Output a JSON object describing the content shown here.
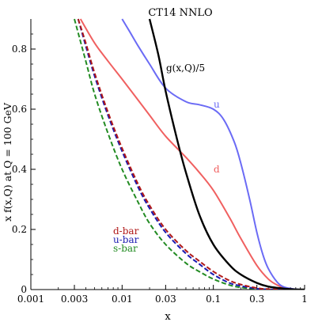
{
  "chart_data": {
    "type": "line",
    "title": "CT14 NNLO",
    "xlabel": "x",
    "ylabel": "x f(x,Q) at Q = 100 GeV",
    "xscale": "log",
    "xlim": [
      0.001,
      1
    ],
    "ylim": [
      0,
      0.9
    ],
    "x_ticks": [
      0.001,
      0.003,
      0.01,
      0.03,
      0.1,
      0.3,
      1
    ],
    "x_tick_labels": [
      "0.001",
      "0.003",
      "0.01",
      "0.03",
      "0.1",
      "0.3",
      "1"
    ],
    "y_ticks": [
      0,
      0.2,
      0.4,
      0.6,
      0.8
    ],
    "y_tick_labels": [
      "0",
      "0.2",
      "0.4",
      "0.6",
      "0.8"
    ],
    "grid": false,
    "legend": "lower-left",
    "series": [
      {
        "name": "g(x,Q)/5",
        "color": "#000000",
        "style": "solid",
        "x": [
          0.02,
          0.025,
          0.03,
          0.04,
          0.05,
          0.07,
          0.1,
          0.15,
          0.2,
          0.3,
          0.4,
          0.6,
          0.8,
          1
        ],
        "y": [
          0.9,
          0.78,
          0.66,
          0.5,
          0.39,
          0.25,
          0.15,
          0.082,
          0.05,
          0.022,
          0.01,
          0.003,
          0.0005,
          0
        ]
      },
      {
        "name": "u",
        "color": "#6b6bf5",
        "style": "solid",
        "x": [
          0.01,
          0.012,
          0.015,
          0.02,
          0.03,
          0.05,
          0.07,
          0.1,
          0.13,
          0.17,
          0.2,
          0.25,
          0.3,
          0.35,
          0.4,
          0.5,
          0.6,
          0.8,
          1
        ],
        "y": [
          0.9,
          0.86,
          0.81,
          0.75,
          0.67,
          0.625,
          0.615,
          0.6,
          0.565,
          0.49,
          0.42,
          0.3,
          0.19,
          0.115,
          0.07,
          0.025,
          0.008,
          0.001,
          0
        ]
      },
      {
        "name": "d",
        "color": "#f06060",
        "style": "solid",
        "x": [
          0.0035,
          0.005,
          0.007,
          0.01,
          0.015,
          0.02,
          0.03,
          0.05,
          0.07,
          0.1,
          0.15,
          0.2,
          0.3,
          0.4,
          0.5,
          0.6,
          0.8,
          1
        ],
        "y": [
          0.9,
          0.82,
          0.76,
          0.7,
          0.63,
          0.58,
          0.51,
          0.44,
          0.39,
          0.33,
          0.24,
          0.17,
          0.08,
          0.035,
          0.015,
          0.005,
          0.0005,
          0
        ]
      },
      {
        "name": "d-bar",
        "color": "#b01818",
        "style": "dashed",
        "x": [
          0.0033,
          0.004,
          0.005,
          0.007,
          0.01,
          0.015,
          0.02,
          0.03,
          0.05,
          0.07,
          0.1,
          0.15,
          0.2,
          0.3,
          0.4,
          0.6,
          1
        ],
        "y": [
          0.9,
          0.82,
          0.72,
          0.59,
          0.47,
          0.35,
          0.28,
          0.2,
          0.13,
          0.095,
          0.06,
          0.03,
          0.017,
          0.005,
          0.0015,
          0.0002,
          0
        ]
      },
      {
        "name": "u-bar",
        "color": "#1a1ab0",
        "style": "dashed",
        "x": [
          0.0033,
          0.004,
          0.005,
          0.007,
          0.01,
          0.015,
          0.02,
          0.03,
          0.05,
          0.07,
          0.1,
          0.15,
          0.2,
          0.3,
          0.4,
          0.6,
          1
        ],
        "y": [
          0.9,
          0.81,
          0.71,
          0.58,
          0.46,
          0.34,
          0.27,
          0.19,
          0.12,
          0.085,
          0.05,
          0.022,
          0.012,
          0.003,
          0.0008,
          0.0001,
          0
        ]
      },
      {
        "name": "s-bar",
        "color": "#228b22",
        "style": "dashed",
        "x": [
          0.003,
          0.004,
          0.005,
          0.007,
          0.01,
          0.015,
          0.02,
          0.03,
          0.05,
          0.07,
          0.1,
          0.15,
          0.2,
          0.3,
          0.4,
          0.6,
          1
        ],
        "y": [
          0.9,
          0.76,
          0.65,
          0.52,
          0.4,
          0.29,
          0.22,
          0.15,
          0.088,
          0.06,
          0.035,
          0.015,
          0.007,
          0.002,
          0.0005,
          0.0001,
          0
        ]
      }
    ]
  }
}
